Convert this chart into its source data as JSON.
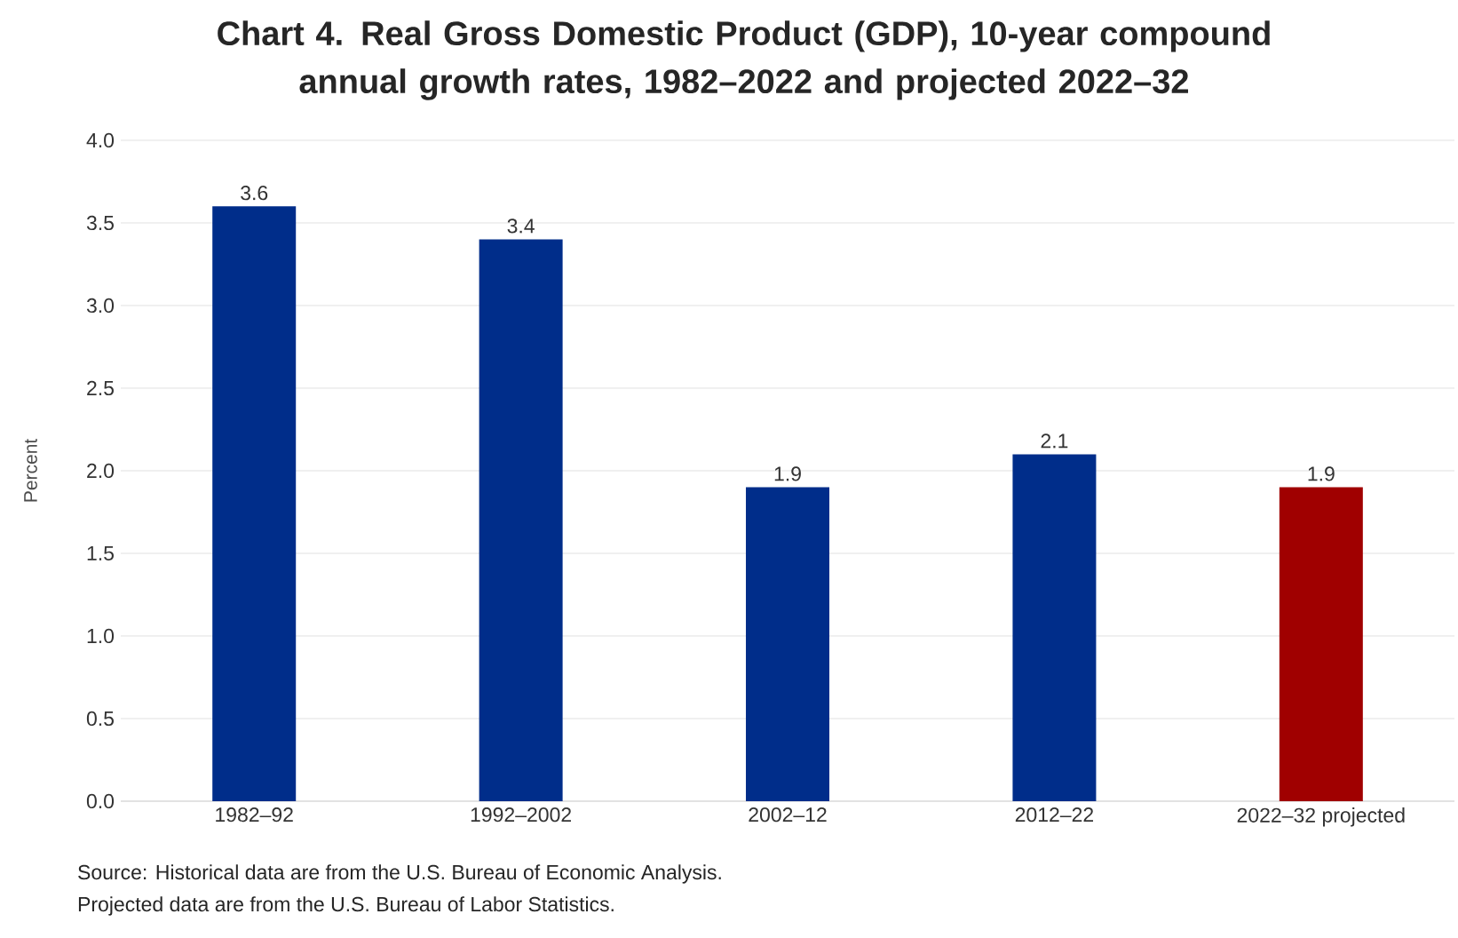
{
  "chart_data": {
    "type": "bar",
    "title": "Chart 4. Real Gross Domestic Product (GDP), 10-year compound annual growth rates, 1982–2022 and projected 2022–32",
    "ylabel": "Percent",
    "categories": [
      "1982–92",
      "1992–2002",
      "2002–12",
      "2012–22",
      "2022–32 projected"
    ],
    "values": [
      3.6,
      3.4,
      1.9,
      2.1,
      1.9
    ],
    "colors": [
      "#002d8a",
      "#002d8a",
      "#002d8a",
      "#002d8a",
      "#a00000"
    ],
    "ylim": [
      0,
      4
    ],
    "yticks": [
      {
        "value": 0,
        "label": "0.0"
      },
      {
        "value": 0.5,
        "label": "0.5"
      },
      {
        "value": 1,
        "label": "1.0"
      },
      {
        "value": 1.5,
        "label": "1.5"
      },
      {
        "value": 2,
        "label": "2.0"
      },
      {
        "value": 2.5,
        "label": "2.5"
      },
      {
        "value": 3,
        "label": "3.0"
      },
      {
        "value": 3.5,
        "label": "3.5"
      },
      {
        "value": 4,
        "label": "4.0"
      }
    ],
    "grid": "y",
    "data_labels": true,
    "annotations": [
      "Source: Historical data are from the U.S. Bureau of Economic Analysis.",
      "Projected data are from the U.S. Bureau of Labor Statistics."
    ]
  }
}
